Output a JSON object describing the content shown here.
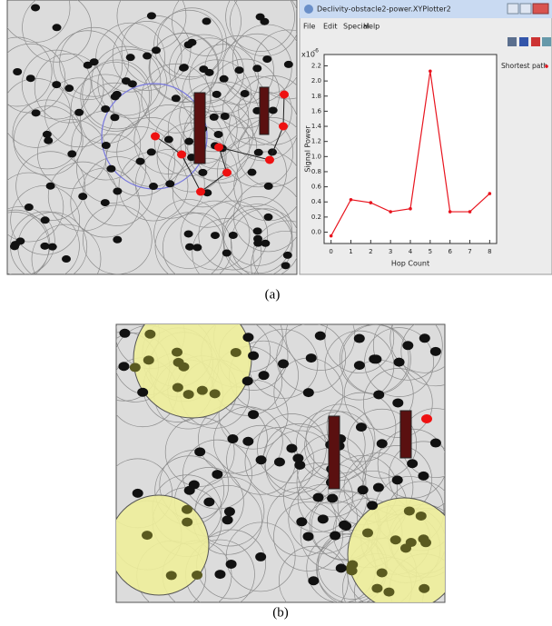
{
  "figure": {
    "panel_a_caption": "(a)",
    "panel_b_caption": "(b)",
    "window": {
      "title": "Declivity-obstacle2-power.XYPlotter2",
      "menu": [
        "File",
        "Edit",
        "Special",
        "Help"
      ]
    }
  },
  "chart_data": {
    "type": "line",
    "x_label": "Hop Count",
    "y_label": "Signal Power",
    "y_scale_base": "x10",
    "y_scale_exponent": "-6",
    "x": [
      0,
      1,
      2,
      3,
      4,
      5,
      6,
      7,
      8
    ],
    "series": [
      {
        "name": "Shortest path",
        "color": "#e8141e",
        "values": [
          -0.05,
          0.43,
          0.39,
          0.27,
          0.31,
          2.13,
          0.27,
          0.27,
          0.51
        ]
      }
    ],
    "xlim": [
      -0.35,
      8.35
    ],
    "ylim": [
      -0.15,
      2.35
    ],
    "xticks": [
      0,
      1,
      2,
      3,
      4,
      5,
      6,
      7,
      8
    ],
    "yticks": [
      {
        "value": 0,
        "label": "0.0"
      },
      0.2,
      0.4,
      0.6,
      0.8,
      {
        "value": 1,
        "label": "1.0"
      },
      1.2,
      1.4,
      1.6,
      1.8,
      {
        "value": 2,
        "label": "2.0"
      },
      2.2
    ],
    "grid": false,
    "legend": "right"
  }
}
